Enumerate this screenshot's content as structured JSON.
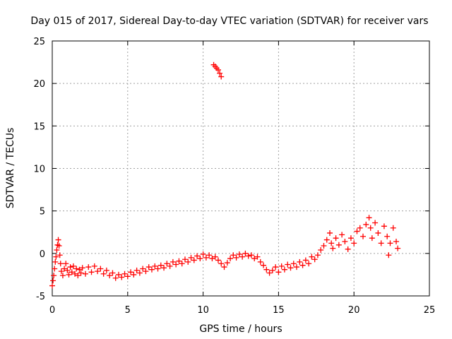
{
  "chart_data": {
    "type": "scatter",
    "title": "Day 015 of 2017, Sidereal Day-to-day VTEC variation (SDTVAR) for receiver vars",
    "xlabel": "GPS time / hours",
    "ylabel": "SDTVAR / TECUs",
    "xlim": [
      0,
      25
    ],
    "ylim": [
      -5,
      25
    ],
    "xticks": [
      "0",
      "5",
      "10",
      "15",
      "20",
      "25"
    ],
    "yticks": [
      "-5",
      "0",
      "5",
      "10",
      "15",
      "20",
      "25"
    ],
    "grid": true,
    "marker": "plus",
    "color": "#ff0000",
    "series": [
      {
        "name": "SDTVAR",
        "points": [
          [
            0.0,
            -3.8
          ],
          [
            0.05,
            -3.2
          ],
          [
            0.1,
            -2.6
          ],
          [
            0.15,
            -1.8
          ],
          [
            0.2,
            -1.0
          ],
          [
            0.25,
            -0.4
          ],
          [
            0.3,
            0.4
          ],
          [
            0.35,
            1.0
          ],
          [
            0.4,
            1.6
          ],
          [
            0.45,
            0.9
          ],
          [
            0.5,
            -0.2
          ],
          [
            0.55,
            -1.2
          ],
          [
            0.6,
            -2.1
          ],
          [
            0.7,
            -2.6
          ],
          [
            0.8,
            -1.8
          ],
          [
            0.9,
            -1.2
          ],
          [
            1.0,
            -2.0
          ],
          [
            1.1,
            -2.5
          ],
          [
            1.2,
            -1.6
          ],
          [
            1.3,
            -2.2
          ],
          [
            1.4,
            -1.5
          ],
          [
            1.5,
            -2.4
          ],
          [
            1.6,
            -1.8
          ],
          [
            1.7,
            -2.6
          ],
          [
            1.8,
            -1.9
          ],
          [
            1.9,
            -2.3
          ],
          [
            2.0,
            -1.7
          ],
          [
            2.2,
            -2.4
          ],
          [
            2.4,
            -1.6
          ],
          [
            2.6,
            -2.2
          ],
          [
            2.8,
            -1.5
          ],
          [
            3.0,
            -2.1
          ],
          [
            3.2,
            -1.8
          ],
          [
            3.4,
            -2.4
          ],
          [
            3.6,
            -2.0
          ],
          [
            3.8,
            -2.6
          ],
          [
            4.0,
            -2.3
          ],
          [
            4.2,
            -2.9
          ],
          [
            4.4,
            -2.5
          ],
          [
            4.6,
            -2.8
          ],
          [
            4.8,
            -2.4
          ],
          [
            5.0,
            -2.7
          ],
          [
            5.2,
            -2.2
          ],
          [
            5.4,
            -2.5
          ],
          [
            5.6,
            -2.0
          ],
          [
            5.8,
            -2.3
          ],
          [
            6.0,
            -1.8
          ],
          [
            6.2,
            -2.1
          ],
          [
            6.4,
            -1.6
          ],
          [
            6.6,
            -1.9
          ],
          [
            6.8,
            -1.5
          ],
          [
            7.0,
            -1.8
          ],
          [
            7.2,
            -1.4
          ],
          [
            7.4,
            -1.7
          ],
          [
            7.6,
            -1.2
          ],
          [
            7.8,
            -1.5
          ],
          [
            8.0,
            -1.0
          ],
          [
            8.2,
            -1.3
          ],
          [
            8.4,
            -0.9
          ],
          [
            8.6,
            -1.2
          ],
          [
            8.8,
            -0.7
          ],
          [
            9.0,
            -1.0
          ],
          [
            9.2,
            -0.5
          ],
          [
            9.4,
            -0.8
          ],
          [
            9.6,
            -0.3
          ],
          [
            9.8,
            -0.6
          ],
          [
            10.0,
            -0.1
          ],
          [
            10.2,
            -0.5
          ],
          [
            10.4,
            -0.2
          ],
          [
            10.6,
            -0.6
          ],
          [
            10.7,
            22.2
          ],
          [
            10.8,
            22.0
          ],
          [
            10.9,
            21.8
          ],
          [
            11.0,
            21.6
          ],
          [
            11.1,
            21.2
          ],
          [
            11.2,
            20.8
          ],
          [
            10.8,
            -0.4
          ],
          [
            11.0,
            -0.8
          ],
          [
            11.2,
            -1.2
          ],
          [
            11.4,
            -1.6
          ],
          [
            11.6,
            -1.1
          ],
          [
            11.8,
            -0.6
          ],
          [
            12.0,
            -0.2
          ],
          [
            12.2,
            -0.5
          ],
          [
            12.4,
            -0.1
          ],
          [
            12.6,
            -0.4
          ],
          [
            12.8,
            0.0
          ],
          [
            13.0,
            -0.3
          ],
          [
            13.2,
            -0.2
          ],
          [
            13.4,
            -0.6
          ],
          [
            13.6,
            -0.4
          ],
          [
            13.8,
            -1.0
          ],
          [
            14.0,
            -1.4
          ],
          [
            14.2,
            -1.9
          ],
          [
            14.4,
            -2.3
          ],
          [
            14.6,
            -2.0
          ],
          [
            14.8,
            -1.6
          ],
          [
            15.0,
            -2.2
          ],
          [
            15.2,
            -1.5
          ],
          [
            15.4,
            -1.9
          ],
          [
            15.6,
            -1.3
          ],
          [
            15.8,
            -1.7
          ],
          [
            16.0,
            -1.2
          ],
          [
            16.2,
            -1.6
          ],
          [
            16.4,
            -1.0
          ],
          [
            16.6,
            -1.4
          ],
          [
            16.8,
            -0.8
          ],
          [
            17.0,
            -1.2
          ],
          [
            17.2,
            -0.4
          ],
          [
            17.4,
            -0.7
          ],
          [
            17.6,
            -0.2
          ],
          [
            17.8,
            0.4
          ],
          [
            18.0,
            0.9
          ],
          [
            18.2,
            1.6
          ],
          [
            18.4,
            2.4
          ],
          [
            18.5,
            1.2
          ],
          [
            18.6,
            0.6
          ],
          [
            18.8,
            1.8
          ],
          [
            19.0,
            1.0
          ],
          [
            19.2,
            2.2
          ],
          [
            19.4,
            1.4
          ],
          [
            19.6,
            0.5
          ],
          [
            19.8,
            1.8
          ],
          [
            20.0,
            1.2
          ],
          [
            20.2,
            2.6
          ],
          [
            20.4,
            3.0
          ],
          [
            20.6,
            2.0
          ],
          [
            20.8,
            3.4
          ],
          [
            21.0,
            4.2
          ],
          [
            21.1,
            3.0
          ],
          [
            21.2,
            1.8
          ],
          [
            21.4,
            3.6
          ],
          [
            21.6,
            2.4
          ],
          [
            21.8,
            1.2
          ],
          [
            22.0,
            3.2
          ],
          [
            22.2,
            2.0
          ],
          [
            22.3,
            -0.2
          ],
          [
            22.4,
            1.2
          ],
          [
            22.6,
            3.0
          ],
          [
            22.8,
            1.4
          ],
          [
            22.9,
            0.6
          ]
        ]
      }
    ]
  }
}
